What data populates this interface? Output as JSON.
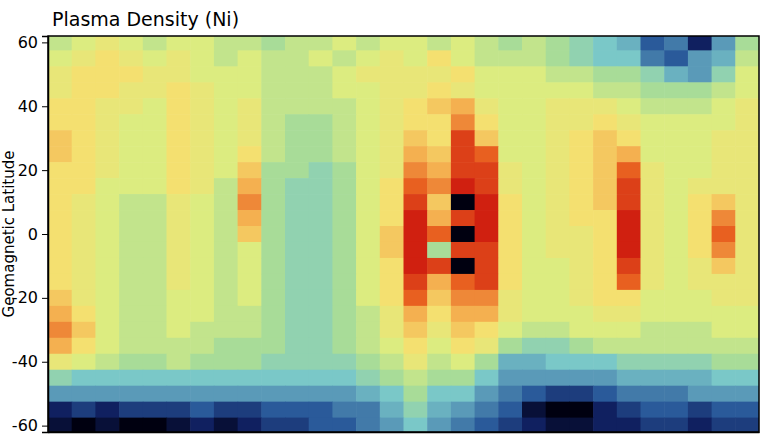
{
  "chart_data": {
    "type": "heatmap",
    "title": "Plasma Density (Ni)",
    "y_label": "Geomagnetic Latitude",
    "categories": [
      null,
      null,
      null,
      null,
      null,
      null,
      null,
      null,
      null,
      null,
      null,
      null,
      null,
      null,
      null,
      null,
      null,
      null,
      null,
      null,
      null,
      null,
      null,
      null,
      null,
      null,
      null,
      null,
      null,
      null
    ],
    "y": [
      60,
      55,
      50,
      45,
      40,
      35,
      30,
      25,
      20,
      15,
      10,
      5,
      0,
      -5,
      -10,
      -15,
      -20,
      -25,
      -30,
      -35,
      -40,
      -45,
      -50,
      -55,
      -60
    ],
    "z": [
      [
        55,
        60,
        65,
        60,
        55,
        60,
        60,
        55,
        55,
        50,
        55,
        55,
        60,
        55,
        60,
        60,
        55,
        60,
        55,
        50,
        55,
        50,
        45,
        40,
        35,
        20,
        25,
        10,
        30,
        50
      ],
      [
        60,
        65,
        70,
        65,
        60,
        65,
        60,
        55,
        60,
        55,
        55,
        60,
        55,
        60,
        65,
        60,
        70,
        60,
        55,
        55,
        55,
        50,
        45,
        40,
        40,
        25,
        20,
        30,
        35,
        55
      ],
      [
        65,
        70,
        70,
        70,
        65,
        65,
        60,
        60,
        60,
        55,
        55,
        55,
        60,
        65,
        65,
        65,
        65,
        70,
        60,
        60,
        60,
        55,
        55,
        50,
        50,
        45,
        35,
        30,
        45,
        60
      ],
      [
        65,
        70,
        70,
        65,
        65,
        70,
        65,
        60,
        60,
        55,
        55,
        55,
        60,
        60,
        65,
        65,
        70,
        65,
        60,
        60,
        60,
        60,
        60,
        55,
        55,
        50,
        50,
        50,
        55,
        60
      ],
      [
        70,
        70,
        65,
        65,
        60,
        70,
        65,
        60,
        65,
        55,
        55,
        55,
        55,
        60,
        65,
        70,
        75,
        80,
        65,
        60,
        60,
        65,
        65,
        65,
        60,
        55,
        55,
        55,
        60,
        65
      ],
      [
        70,
        70,
        65,
        60,
        60,
        70,
        65,
        60,
        65,
        55,
        50,
        50,
        55,
        60,
        65,
        70,
        70,
        85,
        70,
        60,
        60,
        65,
        65,
        70,
        65,
        60,
        60,
        60,
        60,
        65
      ],
      [
        75,
        70,
        65,
        60,
        60,
        70,
        65,
        60,
        65,
        55,
        50,
        50,
        55,
        60,
        65,
        75,
        70,
        95,
        75,
        60,
        60,
        65,
        70,
        75,
        70,
        60,
        60,
        60,
        65,
        65
      ],
      [
        75,
        70,
        65,
        60,
        60,
        70,
        65,
        60,
        70,
        55,
        50,
        50,
        55,
        60,
        65,
        80,
        75,
        95,
        90,
        60,
        60,
        65,
        70,
        75,
        80,
        60,
        60,
        60,
        65,
        65
      ],
      [
        70,
        70,
        65,
        60,
        60,
        70,
        65,
        60,
        75,
        50,
        50,
        45,
        50,
        60,
        65,
        85,
        80,
        95,
        95,
        65,
        60,
        65,
        70,
        75,
        90,
        65,
        60,
        60,
        65,
        65
      ],
      [
        70,
        70,
        60,
        60,
        60,
        70,
        65,
        55,
        80,
        50,
        45,
        45,
        50,
        60,
        70,
        90,
        85,
        100,
        95,
        65,
        60,
        65,
        70,
        75,
        95,
        65,
        60,
        65,
        65,
        65
      ],
      [
        70,
        65,
        60,
        55,
        55,
        65,
        60,
        55,
        85,
        50,
        45,
        45,
        50,
        60,
        70,
        95,
        75,
        0,
        100,
        70,
        60,
        65,
        70,
        75,
        95,
        65,
        60,
        70,
        75,
        65
      ],
      [
        70,
        65,
        60,
        55,
        55,
        65,
        60,
        55,
        80,
        50,
        45,
        45,
        50,
        60,
        70,
        100,
        80,
        95,
        100,
        70,
        60,
        65,
        70,
        70,
        100,
        65,
        60,
        70,
        85,
        65
      ],
      [
        70,
        65,
        60,
        55,
        55,
        65,
        60,
        55,
        75,
        50,
        45,
        45,
        50,
        60,
        75,
        100,
        90,
        0,
        100,
        70,
        60,
        65,
        65,
        70,
        100,
        65,
        60,
        70,
        90,
        65
      ],
      [
        70,
        65,
        60,
        55,
        55,
        65,
        60,
        55,
        60,
        50,
        45,
        45,
        50,
        60,
        75,
        100,
        50,
        95,
        95,
        70,
        60,
        65,
        65,
        70,
        100,
        65,
        60,
        70,
        85,
        65
      ],
      [
        70,
        65,
        60,
        55,
        55,
        65,
        60,
        55,
        60,
        50,
        45,
        45,
        50,
        60,
        70,
        100,
        95,
        0,
        95,
        70,
        60,
        60,
        65,
        70,
        95,
        65,
        60,
        65,
        75,
        65
      ],
      [
        70,
        65,
        60,
        55,
        55,
        65,
        60,
        55,
        60,
        50,
        45,
        45,
        50,
        60,
        70,
        95,
        80,
        90,
        95,
        70,
        60,
        60,
        65,
        70,
        90,
        65,
        60,
        65,
        65,
        65
      ],
      [
        75,
        65,
        60,
        55,
        55,
        60,
        60,
        55,
        60,
        50,
        45,
        45,
        50,
        60,
        70,
        90,
        75,
        85,
        85,
        65,
        60,
        60,
        65,
        70,
        70,
        60,
        60,
        60,
        65,
        65
      ],
      [
        80,
        70,
        60,
        55,
        55,
        60,
        60,
        55,
        55,
        50,
        45,
        45,
        50,
        55,
        65,
        80,
        70,
        80,
        80,
        65,
        60,
        60,
        60,
        65,
        65,
        60,
        60,
        60,
        60,
        60
      ],
      [
        85,
        75,
        60,
        55,
        55,
        60,
        55,
        55,
        55,
        50,
        45,
        45,
        50,
        55,
        65,
        75,
        65,
        75,
        70,
        60,
        55,
        55,
        60,
        60,
        60,
        55,
        55,
        55,
        60,
        60
      ],
      [
        80,
        70,
        60,
        55,
        55,
        55,
        55,
        50,
        50,
        50,
        45,
        45,
        50,
        55,
        60,
        70,
        60,
        70,
        65,
        50,
        45,
        45,
        50,
        55,
        55,
        55,
        55,
        55,
        55,
        55
      ],
      [
        65,
        60,
        55,
        50,
        50,
        55,
        50,
        50,
        50,
        45,
        45,
        45,
        45,
        50,
        55,
        65,
        55,
        60,
        50,
        35,
        35,
        40,
        40,
        40,
        45,
        45,
        45,
        45,
        50,
        50
      ],
      [
        45,
        40,
        40,
        40,
        40,
        40,
        40,
        40,
        40,
        40,
        40,
        40,
        40,
        45,
        50,
        55,
        50,
        50,
        40,
        30,
        30,
        30,
        30,
        30,
        35,
        35,
        35,
        35,
        40,
        40
      ],
      [
        30,
        30,
        30,
        30,
        30,
        30,
        30,
        30,
        30,
        30,
        30,
        30,
        30,
        35,
        40,
        50,
        40,
        40,
        30,
        25,
        20,
        15,
        15,
        20,
        25,
        25,
        25,
        30,
        30,
        30
      ],
      [
        10,
        15,
        10,
        15,
        15,
        15,
        20,
        15,
        15,
        20,
        20,
        20,
        25,
        25,
        35,
        45,
        35,
        30,
        25,
        20,
        5,
        0,
        0,
        10,
        15,
        20,
        20,
        15,
        20,
        20
      ],
      [
        5,
        0,
        5,
        0,
        0,
        5,
        10,
        5,
        10,
        15,
        15,
        20,
        20,
        25,
        30,
        40,
        30,
        25,
        20,
        15,
        10,
        5,
        5,
        10,
        10,
        15,
        15,
        10,
        15,
        15
      ]
    ],
    "zlim": [
      0,
      100
    ],
    "ylim": [
      -62,
      62
    ],
    "yticks": [
      -60,
      -40,
      -20,
      0,
      20,
      40,
      60
    ],
    "tick_labels": "y"
  }
}
